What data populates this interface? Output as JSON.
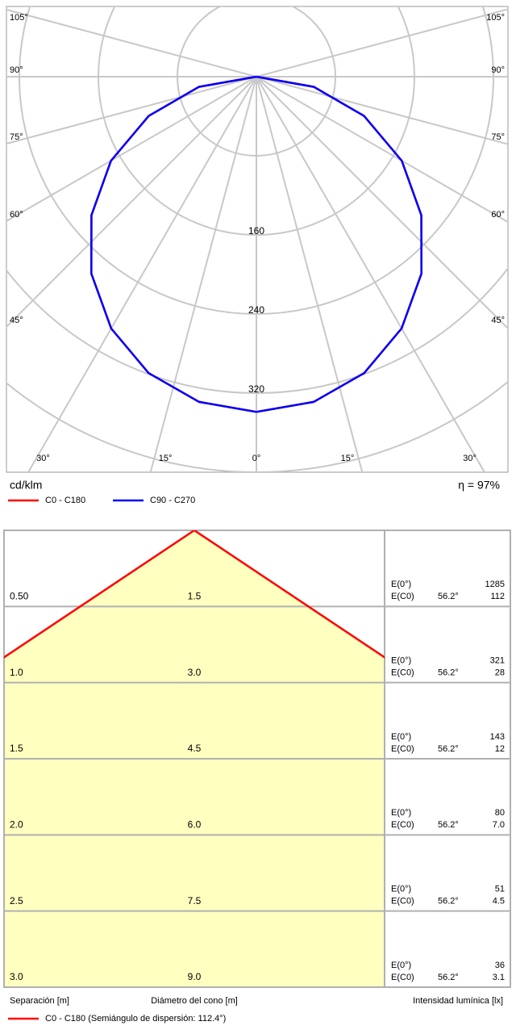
{
  "chart_data": {
    "type": "polar",
    "x": [
      0,
      10,
      20,
      30,
      40,
      50,
      60,
      70,
      80,
      90
    ],
    "series": [
      {
        "name": "C0 - C180",
        "color": "#ff0000",
        "values": [
          339,
          334,
          319,
          294,
          260,
          218,
          170,
          116,
          59,
          0
        ]
      },
      {
        "name": "C90 - C270",
        "color": "#0000ff",
        "values": [
          339,
          334,
          319,
          294,
          260,
          218,
          170,
          116,
          59,
          0
        ]
      }
    ],
    "rlim": [
      0,
      480
    ],
    "rticks": [
      160,
      240,
      320
    ],
    "rgrid": [
      80,
      160,
      240,
      320,
      400,
      480
    ],
    "angle_ticks": [
      {
        "value": 105,
        "label": "105°"
      },
      {
        "value": 90,
        "label": "90°"
      },
      {
        "value": 75,
        "label": "75°"
      },
      {
        "value": 60,
        "label": "60°"
      },
      {
        "value": 45,
        "label": "45°"
      },
      {
        "value": 30,
        "label": "30°"
      },
      {
        "value": 15,
        "label": "15°"
      },
      {
        "value": 0,
        "label": "0°"
      }
    ],
    "unit": "cd/klm",
    "efficiency": "η = 97%"
  },
  "cone": {
    "color": "#ff0000",
    "legend": "C0 - C180 (Semiángulo de dispersión: 112.4°)",
    "columns": [
      "Separación [m]",
      "Diámetro del cono [m]",
      "Intensidad lumínica [lx]"
    ],
    "e0_label": "E(0°)",
    "ec0_label": "E(C0)",
    "rows": [
      {
        "separation": "0.50",
        "diameter": "1.5",
        "e0": "1285",
        "ec0_angle": "56.2°",
        "ec0": "112"
      },
      {
        "separation": "1.0",
        "diameter": "3.0",
        "e0": "321",
        "ec0_angle": "56.2°",
        "ec0": "28"
      },
      {
        "separation": "1.5",
        "diameter": "4.5",
        "e0": "143",
        "ec0_angle": "56.2°",
        "ec0": "12"
      },
      {
        "separation": "2.0",
        "diameter": "6.0",
        "e0": "80",
        "ec0_angle": "56.2°",
        "ec0": "7.0"
      },
      {
        "separation": "2.5",
        "diameter": "7.5",
        "e0": "51",
        "ec0_angle": "56.2°",
        "ec0": "4.5"
      },
      {
        "separation": "3.0",
        "diameter": "9.0",
        "e0": "36",
        "ec0_angle": "56.2°",
        "ec0": "3.1"
      }
    ]
  }
}
